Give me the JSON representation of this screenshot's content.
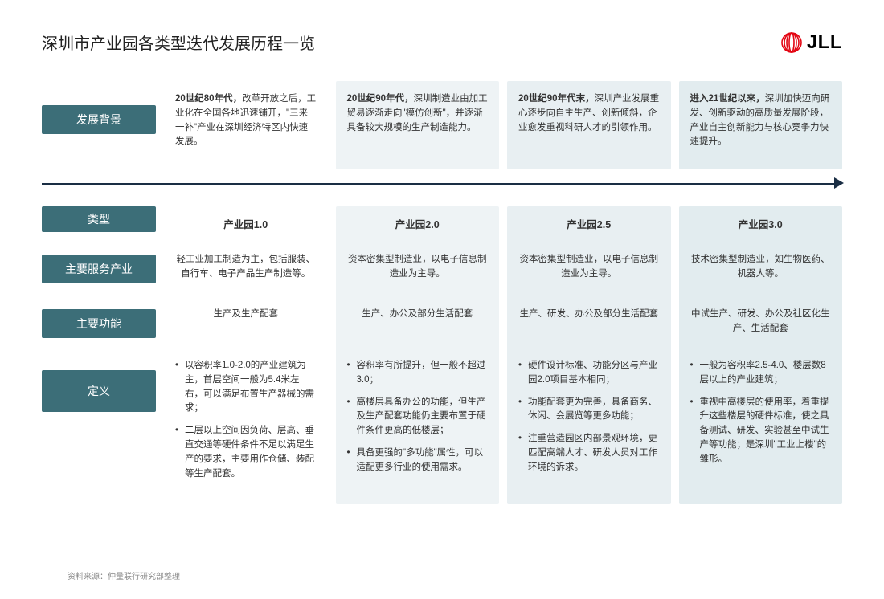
{
  "title": "深圳市产业园各类型迭代发展历程一览",
  "logo_text": "JLL",
  "logo_colors": {
    "brand_red": "#e30613",
    "black": "#000000"
  },
  "row_labels": {
    "background": "发展背景",
    "type": "类型",
    "industry": "主要服务产业",
    "function": "主要功能",
    "definition": "定义"
  },
  "label_style": {
    "bg": "#3c6e78",
    "fg": "#ffffff",
    "fontsize": 14
  },
  "columns": [
    {
      "key": "c1",
      "bg_color": "#ffffff",
      "bg_bold": "20世纪80年代，",
      "bg_text": "改革开放之后，工业化在全国各地迅速铺开，\"三来一补\"产业在深圳经济特区内快速发展。",
      "type": "产业园1.0",
      "industry": "轻工业加工制造为主，包括服装、自行车、电子产品生产制造等。",
      "function": "生产及生产配套",
      "definition": [
        "以容积率1.0-2.0的产业建筑为主，首层空间一般为5.4米左右，可以满足布置生产器械的需求；",
        "二层以上空间因负荷、层高、垂直交通等硬件条件不足以满足生产的要求，主要用作仓储、装配等生产配套。"
      ]
    },
    {
      "key": "c2",
      "bg_color": "#eef3f5",
      "bg_bold": "20世纪90年代，",
      "bg_text": "深圳制造业由加工贸易逐渐走向\"模仿创新\"，并逐渐具备较大规模的生产制造能力。",
      "type": "产业园2.0",
      "industry": "资本密集型制造业，以电子信息制造业为主导。",
      "function": "生产、办公及部分生活配套",
      "definition": [
        "容积率有所提升，但一般不超过3.0；",
        "高楼层具备办公的功能，但生产及生产配套功能仍主要布置于硬件条件更高的低楼层；",
        "具备更强的\"多功能\"属性，可以适配更多行业的使用需求。"
      ]
    },
    {
      "key": "c3",
      "bg_color": "#e8eff2",
      "bg_bold": "20世纪90年代末，",
      "bg_text": "深圳产业发展重心逐步向自主生产、创新倾斜，企业愈发重视科研人才的引领作用。",
      "type": "产业园2.5",
      "industry": "资本密集型制造业，以电子信息制造业为主导。",
      "function": "生产、研发、办公及部分生活配套",
      "definition": [
        "硬件设计标准、功能分区与产业园2.0项目基本相同；",
        "功能配套更为完善，具备商务、休闲、会展览等更多功能；",
        "注重营造园区内部景观环境，更匹配高端人才、研发人员对工作环境的诉求。"
      ]
    },
    {
      "key": "c4",
      "bg_color": "#e2ecef",
      "bg_bold": "进入21世纪以来，",
      "bg_text": "深圳加快迈向研发、创新驱动的高质量发展阶段，产业自主创新能力与核心竞争力快速提升。",
      "type": "产业园3.0",
      "industry": "技术密集型制造业，如生物医药、机器人等。",
      "function": "中试生产、研发、办公及社区化生产、生活配套",
      "definition": [
        "一般为容积率2.5-4.0、楼层数8层以上的产业建筑；",
        "重视中高楼层的使用率，着重提升这些楼层的硬件标准，使之具备测试、研发、实验甚至中试生产等功能；是深圳\"工业上楼\"的雏形。"
      ]
    }
  ],
  "arrow_color": "#1a2e44",
  "source": "资料来源：仲量联行研究部整理"
}
